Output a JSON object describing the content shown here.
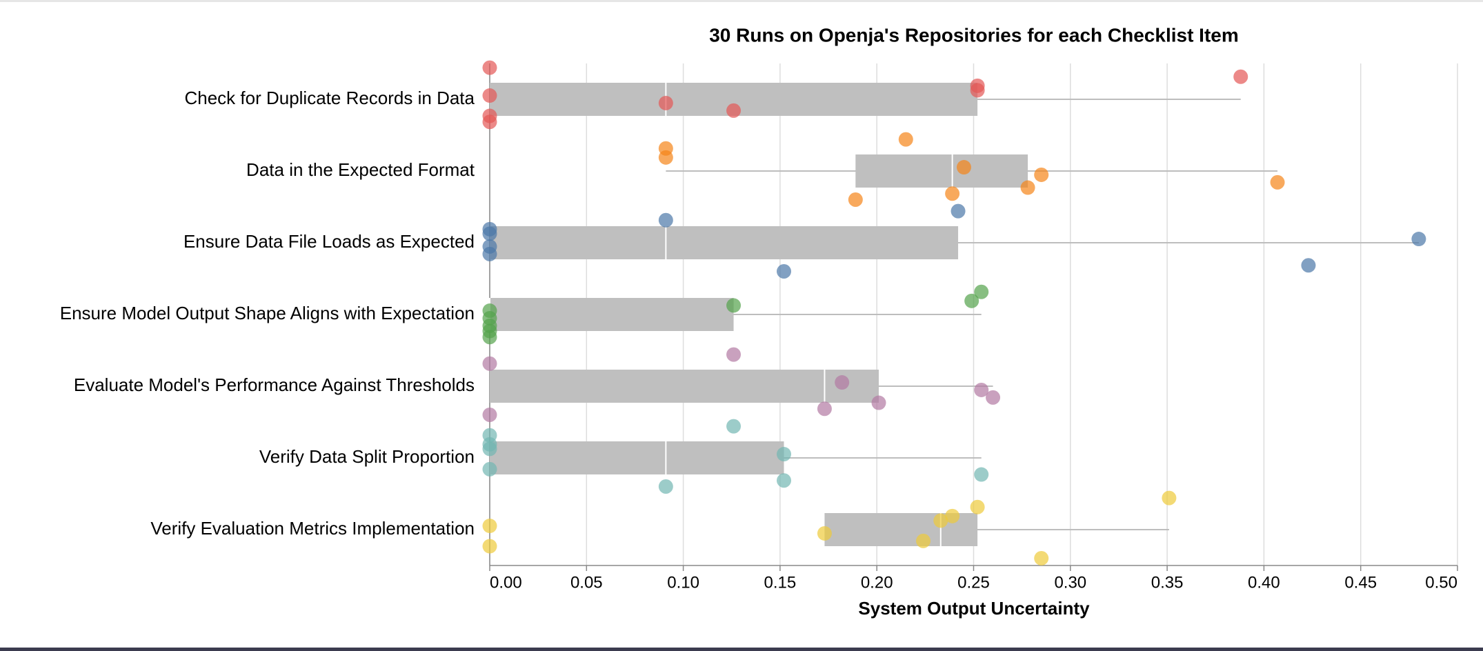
{
  "chart_data": {
    "type": "boxplot",
    "title": "30 Runs on Openja's Repositories for each Checklist Item",
    "x_label": "System Output Uncertainty",
    "xlim": [
      0,
      0.5
    ],
    "xticks": [
      {
        "value": 0,
        "label": "0.00"
      },
      {
        "value": 0.05,
        "label": "0.05"
      },
      {
        "value": 0.1,
        "label": "0.10"
      },
      {
        "value": 0.15,
        "label": "0.15"
      },
      {
        "value": 0.2,
        "label": "0.20"
      },
      {
        "value": 0.25,
        "label": "0.25"
      },
      {
        "value": 0.3,
        "label": "0.30"
      },
      {
        "value": 0.35,
        "label": "0.35"
      },
      {
        "value": 0.4,
        "label": "0.40"
      },
      {
        "value": 0.45,
        "label": "0.45"
      },
      {
        "value": 0.5,
        "label": "0.50"
      }
    ],
    "grid": true,
    "categories": [
      "Check for Duplicate Records in Data",
      "Data in the Expected Format",
      "Ensure Data File Loads as Expected",
      "Ensure Model Output Shape Aligns with Expectation",
      "Evaluate Model's Performance Against Thresholds",
      "Verify Data Split Proportion",
      "Verify Evaluation Metrics Implementation"
    ],
    "boxes": [
      {
        "color": "#e45756",
        "values": [
          0,
          0,
          0,
          0,
          0.091,
          0.126,
          0.252,
          0.252,
          0.388
        ],
        "whisker_low": 0,
        "q1": 0,
        "median": 0.091,
        "q3": 0.252,
        "whisker_high": 0.388
      },
      {
        "color": "#f58518",
        "values": [
          0.091,
          0.091,
          0.189,
          0.215,
          0.239,
          0.245,
          0.278,
          0.285,
          0.407
        ],
        "whisker_low": 0.091,
        "q1": 0.189,
        "median": 0.239,
        "q3": 0.278,
        "whisker_high": 0.407
      },
      {
        "color": "#4c78a8",
        "values": [
          0,
          0,
          0,
          0,
          0.091,
          0.152,
          0.242,
          0.423,
          0.48
        ],
        "whisker_low": 0,
        "q1": 0,
        "median": 0.091,
        "q3": 0.242,
        "whisker_high": 0.48
      },
      {
        "color": "#54a24b",
        "values": [
          0,
          0,
          0,
          0,
          0,
          0.126,
          0.249,
          0.254
        ],
        "whisker_low": 0,
        "q1": 0,
        "median": 0,
        "q3": 0.126,
        "whisker_high": 0.254
      },
      {
        "color": "#b279a2",
        "values": [
          0,
          0,
          0.126,
          0.173,
          0.182,
          0.201,
          0.254,
          0.26
        ],
        "whisker_low": 0,
        "q1": 0,
        "median": 0.173,
        "q3": 0.201,
        "whisker_high": 0.26
      },
      {
        "color": "#72b7b2",
        "values": [
          0,
          0,
          0,
          0,
          0.091,
          0.126,
          0.152,
          0.152,
          0.254
        ],
        "whisker_low": 0,
        "q1": 0,
        "median": 0.091,
        "q3": 0.152,
        "whisker_high": 0.254
      },
      {
        "color": "#eeca3b",
        "values": [
          0,
          0,
          0.173,
          0.224,
          0.233,
          0.239,
          0.252,
          0.285,
          0.351
        ],
        "whisker_low": 0.173,
        "q1": 0.173,
        "median": 0.233,
        "q3": 0.252,
        "whisker_high": 0.351
      }
    ]
  }
}
